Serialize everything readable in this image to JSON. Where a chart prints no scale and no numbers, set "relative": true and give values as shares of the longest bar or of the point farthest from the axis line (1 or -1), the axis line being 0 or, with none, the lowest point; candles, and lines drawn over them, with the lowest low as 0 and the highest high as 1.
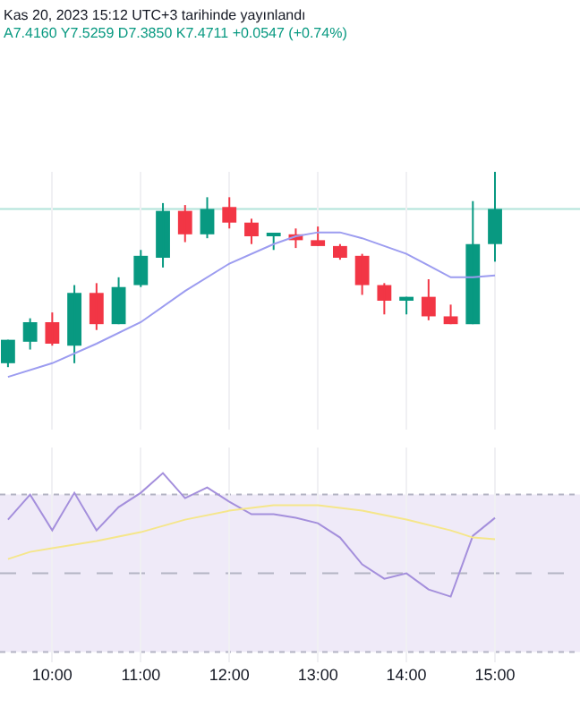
{
  "chart_data": [
    {
      "type": "candlestick",
      "title": "Kas 20, 2023 15:12 UTC+3 tarihinde yayınlandı",
      "annotations": [
        "A7.4160 Y7.5259 D7.3850 K7.4711 +0.0547 (+0.74%)"
      ],
      "relative": true,
      "x": [
        9.5,
        9.75,
        10,
        10.25,
        10.5,
        10.75,
        11,
        11.25,
        11.5,
        11.75,
        12,
        12.25,
        12.5,
        12.75,
        13,
        13.25,
        13.5,
        13.75,
        14,
        14.25,
        14.5,
        14.75,
        15
      ],
      "ohlc": [
        [
          0.02,
          0.14,
          0.0,
          0.14
        ],
        [
          0.13,
          0.25,
          0.09,
          0.23
        ],
        [
          0.23,
          0.28,
          0.11,
          0.12
        ],
        [
          0.11,
          0.42,
          0.02,
          0.38
        ],
        [
          0.38,
          0.43,
          0.19,
          0.22
        ],
        [
          0.22,
          0.46,
          0.22,
          0.41
        ],
        [
          0.42,
          0.6,
          0.41,
          0.57
        ],
        [
          0.56,
          0.84,
          0.51,
          0.8
        ],
        [
          0.8,
          0.83,
          0.64,
          0.68
        ],
        [
          0.68,
          0.87,
          0.66,
          0.81
        ],
        [
          0.82,
          0.87,
          0.71,
          0.74
        ],
        [
          0.74,
          0.76,
          0.63,
          0.67
        ],
        [
          0.67,
          0.68,
          0.6,
          0.68
        ],
        [
          0.68,
          0.71,
          0.61,
          0.65
        ],
        [
          0.65,
          0.72,
          0.62,
          0.62
        ],
        [
          0.62,
          0.63,
          0.55,
          0.56
        ],
        [
          0.57,
          0.58,
          0.37,
          0.42
        ],
        [
          0.42,
          0.43,
          0.27,
          0.34
        ],
        [
          0.34,
          0.36,
          0.27,
          0.36
        ],
        [
          0.36,
          0.45,
          0.24,
          0.26
        ],
        [
          0.26,
          0.32,
          0.22,
          0.22
        ],
        [
          0.22,
          0.85,
          0.22,
          0.63
        ],
        [
          0.63,
          1.0,
          0.54,
          0.81
        ]
      ],
      "colors": [
        "#089981",
        "#089981",
        "#f23645",
        "#089981",
        "#f23645",
        "#089981",
        "#089981",
        "#089981",
        "#f23645",
        "#089981",
        "#f23645",
        "#f23645",
        "#089981",
        "#f23645",
        "#f23645",
        "#f23645",
        "#f23645",
        "#f23645",
        "#089981",
        "#f23645",
        "#f23645",
        "#089981",
        "#089981"
      ],
      "series": [
        {
          "type": "line",
          "color": "#9c9cf0",
          "x": [
            9.5,
            10,
            10.5,
            11,
            11.5,
            12,
            12.5,
            12.75,
            13,
            13.25,
            13.5,
            13.75,
            14,
            14.25,
            14.5,
            14.75,
            15
          ],
          "values": [
            -0.05,
            0.02,
            0.12,
            0.23,
            0.39,
            0.53,
            0.63,
            0.67,
            0.69,
            0.69,
            0.66,
            0.62,
            0.58,
            0.52,
            0.46,
            0.46,
            0.47
          ]
        }
      ],
      "ref_lines": [
        {
          "axis": "y",
          "value": 0.81,
          "color": "#b2e3da"
        }
      ],
      "xlim": [
        9.41,
        15.96
      ],
      "xticks": [
        {
          "value": 10,
          "label": null
        },
        {
          "value": 11,
          "label": null
        },
        {
          "value": 12,
          "label": null
        },
        {
          "value": 13,
          "label": null
        },
        {
          "value": 14,
          "label": null
        },
        {
          "value": 15,
          "label": null
        }
      ],
      "grid": true,
      "tick_labels": false
    },
    {
      "type": "line",
      "relative": true,
      "series": [
        {
          "color": "#a48fdc",
          "x": [
            9.5,
            9.75,
            10,
            10.25,
            10.5,
            10.75,
            11,
            11.25,
            11.5,
            11.75,
            12,
            12.25,
            12.5,
            12.75,
            13,
            13.25,
            13.5,
            13.75,
            14,
            14.25,
            14.5,
            14.75,
            15
          ],
          "values": [
            0.74,
            0.88,
            0.68,
            0.89,
            0.68,
            0.81,
            0.89,
            1.0,
            0.86,
            0.92,
            0.84,
            0.77,
            0.77,
            0.75,
            0.72,
            0.64,
            0.49,
            0.41,
            0.44,
            0.35,
            0.31,
            0.65,
            0.75
          ]
        },
        {
          "color": "#f5e68a",
          "x": [
            9.5,
            9.75,
            10,
            10.5,
            11,
            11.5,
            12,
            12.5,
            13,
            13.5,
            14,
            14.5,
            14.75,
            15
          ],
          "values": [
            0.52,
            0.56,
            0.58,
            0.62,
            0.67,
            0.74,
            0.79,
            0.82,
            0.82,
            0.79,
            0.74,
            0.68,
            0.64,
            0.63
          ]
        }
      ],
      "bands": [
        {
          "axis": "y",
          "from": 0,
          "to": 0.88,
          "color": "#efeaf8"
        }
      ],
      "ref_lines": [
        {
          "axis": "y",
          "value": 0,
          "color": "#b4b4c4",
          "line_style": "dotted"
        },
        {
          "axis": "y",
          "value": 0.44,
          "color": "#b4b4c4",
          "line_style": "dashed"
        },
        {
          "axis": "y",
          "value": 0.88,
          "color": "#b4b4c4",
          "line_style": "dotted"
        }
      ],
      "xlim": [
        9.41,
        15.96
      ],
      "xticks": [
        {
          "value": 10,
          "label": "10:00"
        },
        {
          "value": 11,
          "label": "11:00"
        },
        {
          "value": 12,
          "label": "12:00"
        },
        {
          "value": 13,
          "label": "13:00"
        },
        {
          "value": 14,
          "label": "14:00"
        },
        {
          "value": 15,
          "label": "15:00"
        }
      ],
      "grid": true,
      "tick_labels": "x"
    }
  ]
}
